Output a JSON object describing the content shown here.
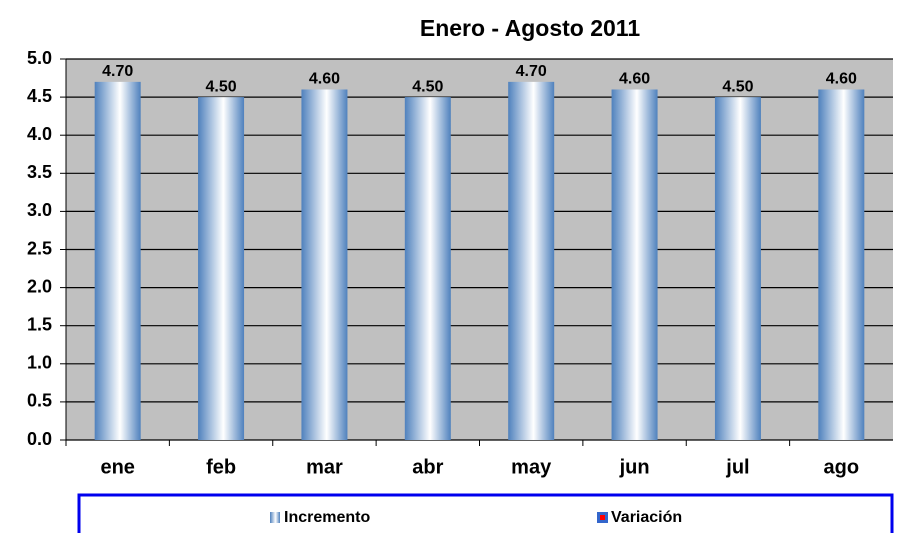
{
  "chart_data": {
    "type": "bar",
    "title": "Enero - Agosto 2011",
    "categories": [
      "ene",
      "feb",
      "mar",
      "abr",
      "may",
      "jun",
      "jul",
      "ago"
    ],
    "series": [
      {
        "name": "Incremento",
        "color": "#4f81bd",
        "values": [
          4.7,
          4.5,
          4.6,
          4.5,
          4.7,
          4.6,
          4.5,
          4.6
        ],
        "value_labels": [
          "4.70",
          "4.50",
          "4.60",
          "4.50",
          "4.70",
          "4.60",
          "4.50",
          "4.60"
        ]
      },
      {
        "name": "Variación",
        "color": "#3366cc",
        "values": [
          null,
          null,
          null,
          null,
          null,
          null,
          null,
          null
        ]
      }
    ],
    "ylim": [
      0,
      5
    ],
    "yticks": [
      {
        "value": 0,
        "label": "0.0"
      },
      {
        "value": 0.5,
        "label": "0.5"
      },
      {
        "value": 1,
        "label": "1.0"
      },
      {
        "value": 1.5,
        "label": "1.5"
      },
      {
        "value": 2,
        "label": "2.0"
      },
      {
        "value": 2.5,
        "label": "2.5"
      },
      {
        "value": 3,
        "label": "3.0"
      },
      {
        "value": 3.5,
        "label": "3.5"
      },
      {
        "value": 4,
        "label": "4.0"
      },
      {
        "value": 4.5,
        "label": "4.5"
      },
      {
        "value": 5,
        "label": "5.0"
      }
    ],
    "grid": true,
    "legend": "bottom"
  }
}
